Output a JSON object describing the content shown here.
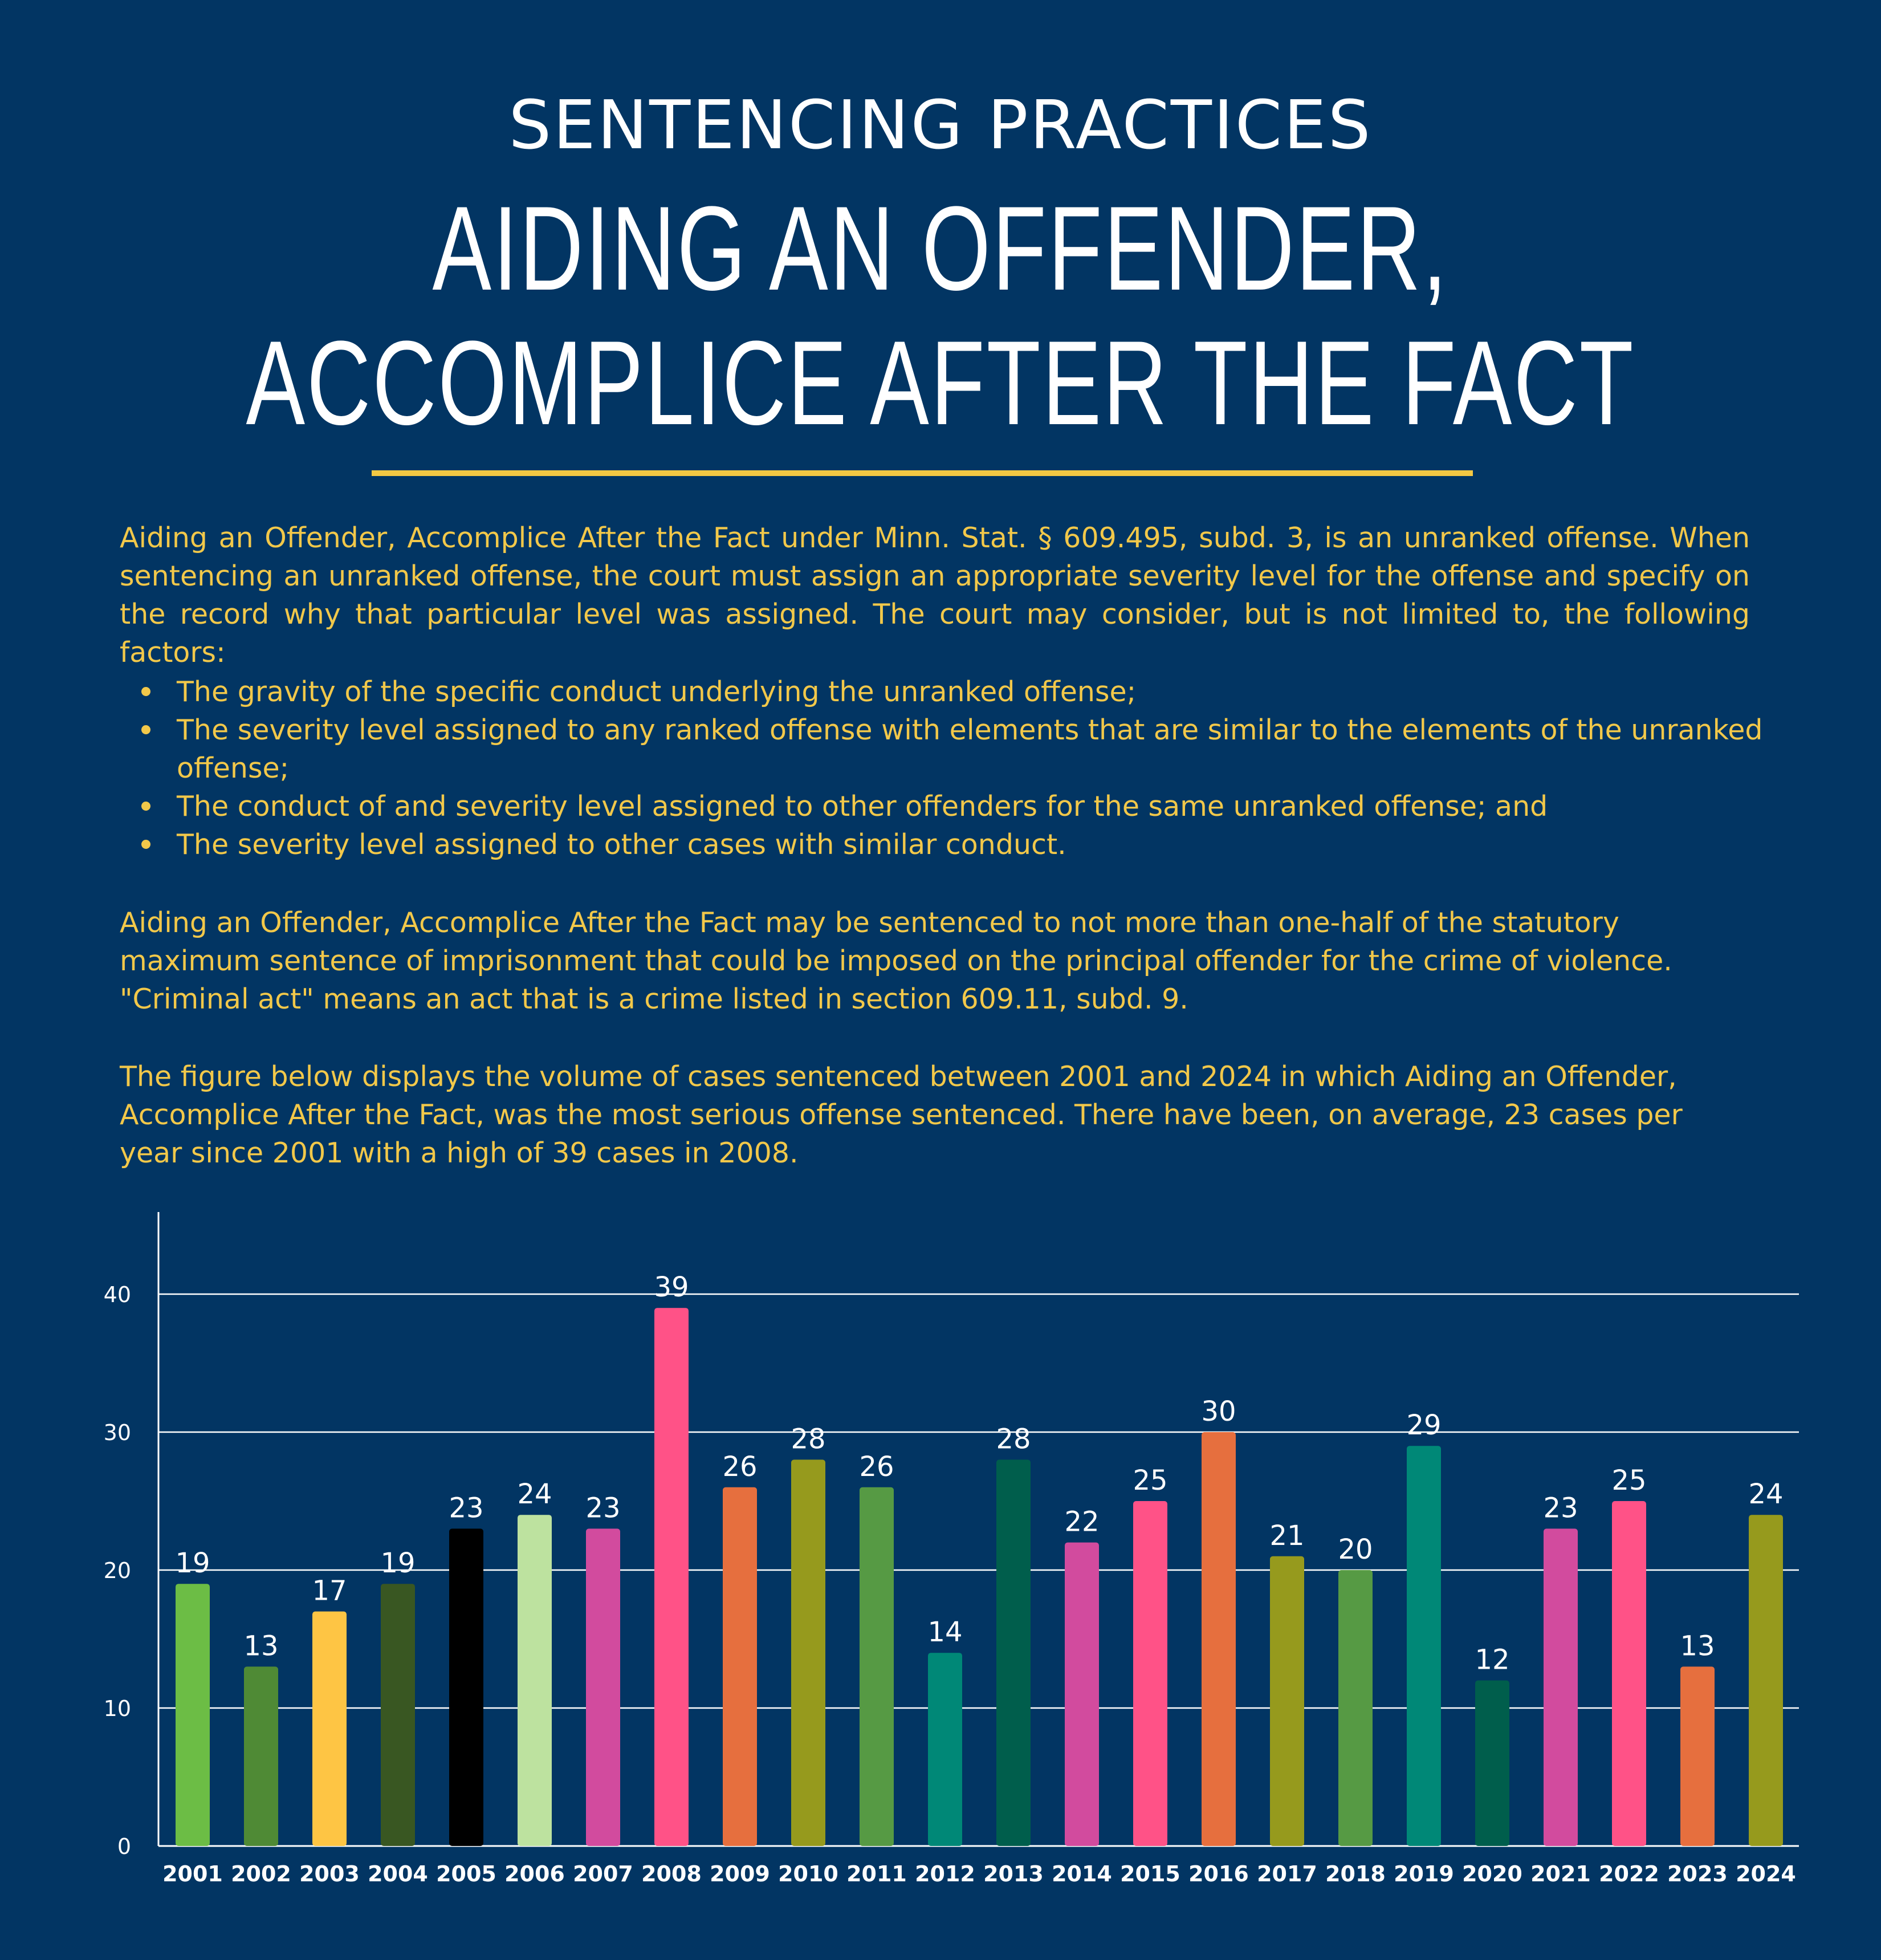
{
  "header": {
    "subtitle": "SENTENCING PRACTICES",
    "title_line1": "AIDING AN OFFENDER,",
    "title_line2": "ACCOMPLICE AFTER THE FACT"
  },
  "body": {
    "intro": "Aiding an Offender, Accomplice After the Fact under Minn. Stat. § 609.495, subd. 3, is an unranked offense. When sentencing an unranked offense, the court must assign an appropriate severity level for the offense and specify on the record why that particular level was assigned. The court may consider, but is not limited to, the following factors:",
    "factors": [
      "The gravity of the specific conduct underlying the unranked offense;",
      "The severity level assigned to any ranked offense with elements that are similar to the elements of the unranked offense;",
      "The conduct of and severity level assigned to other offenders for the same unranked offense; and",
      "The severity level assigned to other cases with similar conduct."
    ],
    "paragraph2": "Aiding an Offender, Accomplice After the Fact may be sentenced to not more than one-half of the statutory maximum sentence of imprisonment that could be imposed on the principal offender for the crime of violence. \"Criminal act\" means an act that is a crime listed in section 609.11, subd. 9.",
    "paragraph3": "The figure below displays the volume of cases sentenced between 2001 and 2024 in which Aiding an Offender, Accomplice After the Fact, was the most serious offense sentenced. There have been, on average, 23 cases per year since 2001 with a high of 39 cases in 2008."
  },
  "colors": {
    "background": "#023563",
    "accent": "#f4c843",
    "body_text": "#f2c84a"
  },
  "chart_data": {
    "type": "bar",
    "title": "",
    "xlabel": "",
    "ylabel": "",
    "ylim": [
      0,
      46
    ],
    "yticks": [
      0,
      10,
      20,
      30,
      40
    ],
    "grid": true,
    "categories": [
      "2001",
      "2002",
      "2003",
      "2004",
      "2005",
      "2006",
      "2007",
      "2008",
      "2009",
      "2010",
      "2011",
      "2012",
      "2013",
      "2014",
      "2015",
      "2016",
      "2017",
      "2018",
      "2019",
      "2020",
      "2021",
      "2022",
      "2023",
      "2024"
    ],
    "values": [
      19,
      13,
      17,
      19,
      23,
      24,
      23,
      39,
      26,
      28,
      26,
      14,
      28,
      22,
      25,
      30,
      21,
      20,
      29,
      12,
      23,
      25,
      13,
      24
    ],
    "bar_colors": [
      "#6cbd45",
      "#4f8a35",
      "#fec544",
      "#395722",
      "#000000",
      "#bde29f",
      "#d24b9e",
      "#ff5287",
      "#e66f3e",
      "#969a1d",
      "#569a44",
      "#008877",
      "#005e4c",
      "#d24b9e",
      "#ff5287",
      "#e66f3e",
      "#969a1d",
      "#569a44",
      "#008877",
      "#005e4c",
      "#d24b9e",
      "#ff5287",
      "#e66f3e",
      "#969a1d"
    ]
  }
}
